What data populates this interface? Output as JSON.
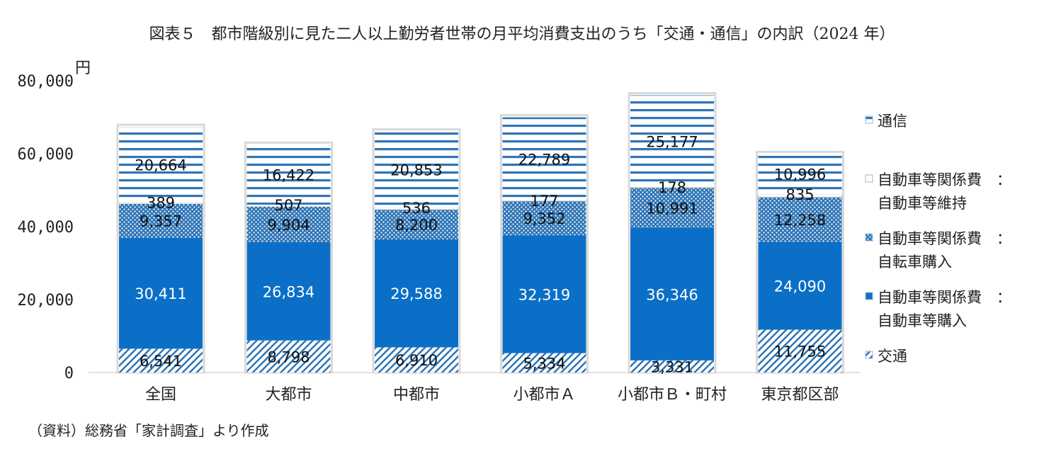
{
  "title": "図表５　都市階級別に見た二人以上勤労者世帯の月平均消費支出のうち「交通・通信」の内訳（2024 年）",
  "source": "（資料）総務省「家計調査」より作成",
  "chart_data": {
    "type": "bar",
    "stacked": true,
    "unit_label": "円",
    "ylim": [
      0,
      80000
    ],
    "yticks": [
      0,
      20000,
      40000,
      60000,
      80000
    ],
    "ytick_labels": [
      "0",
      "20,000",
      "40,000",
      "60,000",
      "80,000"
    ],
    "grid": false,
    "legend_position": "right",
    "categories": [
      "全国",
      "大都市",
      "中都市",
      "小都市Ａ",
      "小都市Ｂ・町村",
      "東京都区部"
    ],
    "series": [
      {
        "name": "交通",
        "pattern": "diagonal",
        "color": "#2e75b6",
        "values": [
          6541,
          8798,
          6910,
          5334,
          3331,
          11755
        ],
        "labels": [
          "6,541",
          "8,798",
          "6,910",
          "5,334",
          "3,331",
          "11,755"
        ]
      },
      {
        "name": "自動車等関係費　：自動車等購入",
        "pattern": "solid",
        "color": "#0b6fc7",
        "values": [
          30411,
          26834,
          29588,
          32319,
          36346,
          24090
        ],
        "labels": [
          "30,411",
          "26,834",
          "29,588",
          "32,319",
          "36,346",
          "24,090"
        ]
      },
      {
        "name": "自動車等関係費　：自転車購入",
        "pattern": "dots",
        "color": "#2e75b6",
        "values": [
          9357,
          9904,
          8200,
          9352,
          10991,
          12258
        ],
        "labels": [
          "9,357",
          "9,904",
          "8,200",
          "9,352",
          "10,991",
          "12,258"
        ]
      },
      {
        "name": "自動車等関係費　：自動車等維持",
        "pattern": "white",
        "color": "#ffffff",
        "values": [
          389,
          507,
          536,
          177,
          178,
          835
        ],
        "labels": [
          "389",
          "507",
          "536",
          "177",
          "178",
          "835"
        ]
      },
      {
        "name": "通信",
        "pattern": "horizontal",
        "color": "#2e75b6",
        "values": [
          20664,
          16422,
          20853,
          22789,
          25177,
          10996
        ],
        "labels": [
          "20,664",
          "16,422",
          "20,853",
          "22,789",
          "25,177",
          "10,996"
        ]
      }
    ],
    "legend": [
      {
        "line1": "通信",
        "line2": ""
      },
      {
        "line1": "自動車等関係費　：",
        "line2": "自動車等維持"
      },
      {
        "line1": "自動車等関係費　：",
        "line2": "自転車購入"
      },
      {
        "line1": "自動車等関係費　：",
        "line2": "自動車等購入"
      },
      {
        "line1": "交通",
        "line2": ""
      }
    ]
  }
}
